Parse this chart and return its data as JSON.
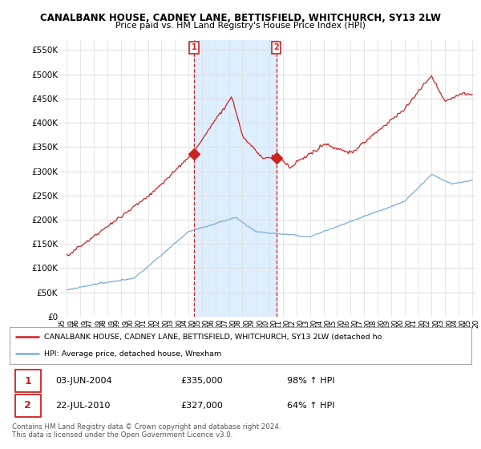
{
  "title1": "CANALBANK HOUSE, CADNEY LANE, BETTISFIELD, WHITCHURCH, SY13 2LW",
  "title2": "Price paid vs. HM Land Registry's House Price Index (HPI)",
  "ylim": [
    0,
    570000
  ],
  "yticks": [
    0,
    50000,
    100000,
    150000,
    200000,
    250000,
    300000,
    350000,
    400000,
    450000,
    500000,
    550000
  ],
  "ytick_labels": [
    "£0",
    "£50K",
    "£100K",
    "£150K",
    "£200K",
    "£250K",
    "£300K",
    "£350K",
    "£400K",
    "£450K",
    "£500K",
    "£550K"
  ],
  "hpi_color": "#7aaddc",
  "price_color": "#cc2222",
  "sale1_price": 335000,
  "sale2_price": 327000,
  "legend_line1": "CANALBANK HOUSE, CADNEY LANE, BETTISFIELD, WHITCHURCH, SY13 2LW (detached ho",
  "legend_line2": "HPI: Average price, detached house, Wrexham",
  "table_row1": [
    "1",
    "03-JUN-2004",
    "£335,000",
    "98% ↑ HPI"
  ],
  "table_row2": [
    "2",
    "22-JUL-2010",
    "£327,000",
    "64% ↑ HPI"
  ],
  "footnote1": "Contains HM Land Registry data © Crown copyright and database right 2024.",
  "footnote2": "This data is licensed under the Open Government Licence v3.0.",
  "plot_bg": "#ffffff",
  "grid_color": "#dddddd",
  "shade_color": "#ddeeff",
  "x_start_year": 1995,
  "x_end_year": 2025
}
